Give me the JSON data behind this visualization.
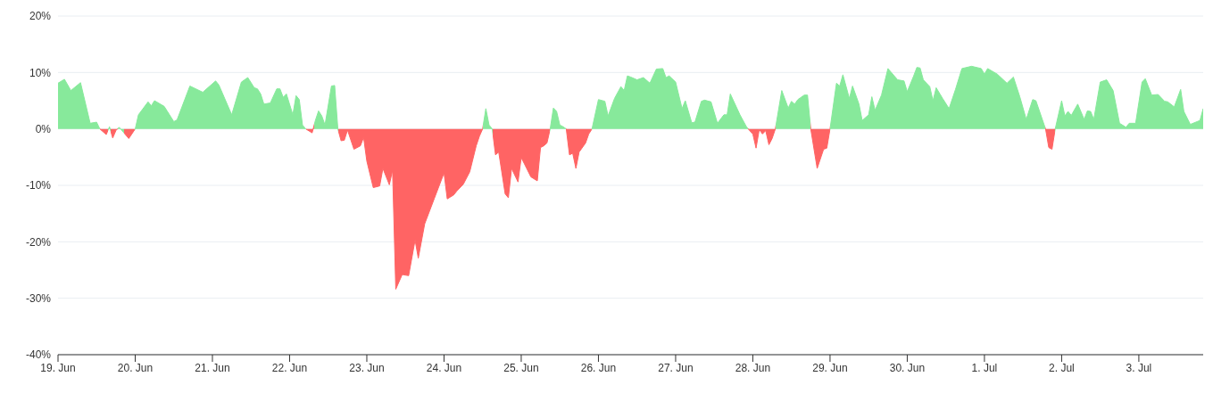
{
  "chart_data": {
    "type": "area",
    "x": [
      "--06-19T00:00",
      "--06-19T02:00",
      "--06-19T04:00",
      "--06-19T07:00",
      "--06-19T10:00",
      "--06-19T12:00",
      "--06-19T13:00",
      "--06-19T15:00",
      "--06-19T16:00",
      "--06-19T17:00",
      "--06-19T18:00",
      "--06-19T19:00",
      "--06-19T22:00",
      "--06-20T00:00",
      "--06-20T01:00",
      "--06-20T04:00",
      "--06-20T05:00",
      "--06-20T06:00",
      "--06-20T09:00",
      "--06-20T12:00",
      "--06-20T13:00",
      "--06-20T17:00",
      "--06-20T21:00",
      "--06-21T01:00",
      "--06-21T02:00",
      "--06-21T06:00",
      "--06-21T09:00",
      "--06-21T11:00",
      "--06-21T13:00",
      "--06-21T14:00",
      "--06-21T15:00",
      "--06-21T16:00",
      "--06-21T18:00",
      "--06-21T20:00",
      "--06-21T21:00",
      "--06-21T22:00",
      "--06-21T23:00",
      "--06-22T01:00",
      "--06-22T02:00",
      "--06-22T03:00",
      "--06-22T04:00",
      "--06-22T05:00",
      "--06-22T07:00",
      "--06-22T08:00",
      "--06-22T09:00",
      "--06-22T10:00",
      "--06-22T11:00",
      "--06-22T13:00",
      "--06-22T14:00",
      "--06-22T15:00",
      "--06-22T16:00",
      "--06-22T17:00",
      "--06-22T18:00",
      "--06-22T20:00",
      "--06-22T22:00",
      "--06-22T23:00",
      "--06-23T00:00",
      "--06-23T02:00",
      "--06-23T04:00",
      "--06-23T05:00",
      "--06-23T07:00",
      "--06-23T08:00",
      "--06-23T09:00",
      "--06-23T11:00",
      "--06-23T13:00",
      "--06-23T15:00",
      "--06-23T16:00",
      "--06-23T18:00",
      "--06-23T21:00",
      "--06-24T00:00",
      "--06-24T01:00",
      "--06-24T03:00",
      "--06-24T04:00",
      "--06-24T06:00",
      "--06-24T08:00",
      "--06-24T10:00",
      "--06-24T11:00",
      "--06-24T12:00",
      "--06-24T13:00",
      "--06-24T14:00",
      "--06-24T15:00",
      "--06-24T16:00",
      "--06-24T17:00",
      "--06-24T19:00",
      "--06-24T20:00",
      "--06-24T21:00",
      "--06-24T23:00",
      "--06-25T00:00",
      "--06-25T01:00",
      "--06-25T03:00",
      "--06-25T05:00",
      "--06-25T06:00",
      "--06-25T07:00",
      "--06-25T08:00",
      "--06-25T09:00",
      "--06-25T10:00",
      "--06-25T11:00",
      "--06-25T12:00",
      "--06-25T13:00",
      "--06-25T14:00",
      "--06-25T15:00",
      "--06-25T16:00",
      "--06-25T17:00",
      "--06-25T18:00",
      "--06-25T20:00",
      "--06-25T21:00",
      "--06-25T22:00",
      "--06-26T00:00",
      "--06-26T02:00",
      "--06-26T03:00",
      "--06-26T05:00",
      "--06-26T07:00",
      "--06-26T08:00",
      "--06-26T09:00",
      "--06-26T10:00",
      "--06-26T12:00",
      "--06-26T14:00",
      "--06-26T16:00",
      "--06-26T18:00",
      "--06-26T20:00",
      "--06-26T21:00",
      "--06-26T22:00",
      "--06-27T00:00",
      "--06-27T02:00",
      "--06-27T03:00",
      "--06-27T05:00",
      "--06-27T06:00",
      "--06-27T08:00",
      "--06-27T09:00",
      "--06-27T11:00",
      "--06-27T13:00",
      "--06-27T15:00",
      "--06-27T16:00",
      "--06-27T17:00",
      "--06-27T20:00",
      "--06-27T22:00",
      "--06-27T23:00",
      "--06-28T00:00",
      "--06-28T01:00",
      "--06-28T02:00",
      "--06-28T03:00",
      "--06-28T04:00",
      "--06-28T05:00",
      "--06-28T06:00",
      "--06-28T07:00",
      "--06-28T09:00",
      "--06-28T11:00",
      "--06-28T12:00",
      "--06-28T13:00",
      "--06-28T14:00",
      "--06-28T16:00",
      "--06-28T17:00",
      "--06-28T18:00",
      "--06-28T20:00",
      "--06-28T22:00",
      "--06-28T23:00",
      "--06-29T00:00",
      "--06-29T02:00",
      "--06-29T03:00",
      "--06-29T04:00",
      "--06-29T06:00",
      "--06-29T07:00",
      "--06-29T09:00",
      "--06-29T10:00",
      "--06-29T12:00",
      "--06-29T13:00",
      "--06-29T14:00",
      "--06-29T16:00",
      "--06-29T18:00",
      "--06-29T21:00",
      "--06-29T23:00",
      "--06-30T00:00",
      "--06-30T02:00",
      "--06-30T03:00",
      "--06-30T04:00",
      "--06-30T05:00",
      "--06-30T07:00",
      "--06-30T08:00",
      "--06-30T09:00",
      "--06-30T11:00",
      "--06-30T13:00",
      "--06-30T15:00",
      "--06-30T17:00",
      "--06-30T20:00",
      "--06-30T23:00",
      "--07-01T00:00",
      "--07-01T01:00",
      "--07-01T04:00",
      "--07-01T07:00",
      "--07-01T09:00",
      "--07-01T11:00",
      "--07-01T13:00",
      "--07-01T15:00",
      "--07-01T16:00",
      "--07-01T19:00",
      "--07-01T20:00",
      "--07-01T21:00",
      "--07-01T22:00",
      "--07-02T00:00",
      "--07-02T01:00",
      "--07-02T02:00",
      "--07-02T03:00",
      "--07-02T05:00",
      "--07-02T07:00",
      "--07-02T08:00",
      "--07-02T09:00",
      "--07-02T10:00",
      "--07-02T12:00",
      "--07-02T14:00",
      "--07-02T16:00",
      "--07-02T18:00",
      "--07-02T20:00",
      "--07-02T21:00",
      "--07-02T23:00",
      "--07-03T01:00",
      "--07-03T02:00",
      "--07-03T04:00",
      "--07-03T06:00",
      "--07-03T08:00",
      "--07-03T09:00",
      "--07-03T11:00",
      "--07-03T13:00",
      "--07-03T14:00",
      "--07-03T16:00",
      "--07-03T19:00",
      "--07-03T20:00"
    ],
    "series": [
      {
        "values": [
          8.1,
          8.8,
          6.8,
          8.2,
          1.0,
          1.2,
          0,
          -1.0,
          0.4,
          -1.6,
          -0.3,
          0.3,
          -1.7,
          0,
          2.5,
          4.8,
          4.1,
          5.0,
          4.0,
          1.3,
          1.6,
          7.6,
          6.5,
          8.5,
          7.8,
          2.5,
          8.3,
          9.1,
          7.3,
          7.1,
          6.2,
          4.4,
          4.6,
          7.1,
          7.1,
          5.6,
          6.2,
          2.5,
          5.9,
          5.2,
          0.7,
          0,
          -0.7,
          1.5,
          3.2,
          2.3,
          0.7,
          7.6,
          7.7,
          0,
          -2.1,
          -2.0,
          -0.2,
          -3.6,
          -3.0,
          -1.5,
          -5.7,
          -10.4,
          -10.1,
          -7.0,
          -9.9,
          -7.3,
          -28.4,
          -25.8,
          -26.0,
          -19.7,
          -22.9,
          -16.8,
          -12.3,
          -7.8,
          -12.4,
          -11.7,
          -11.0,
          -9.8,
          -7.6,
          -3.0,
          -1.3,
          0,
          3.6,
          0.7,
          0,
          -4.6,
          -4.1,
          -11.5,
          -12.2,
          -7.0,
          -9.4,
          -5.1,
          -6.2,
          -8.5,
          -9.2,
          -3.3,
          -3.0,
          -2.5,
          0,
          3.7,
          3.1,
          0.7,
          0.4,
          0,
          -4.6,
          -4.3,
          -7.0,
          -4.1,
          -2.5,
          -0.9,
          0,
          5.2,
          4.9,
          2.3,
          5.4,
          7.5,
          6.8,
          9.4,
          9.2,
          8.7,
          9.1,
          8.1,
          10.6,
          10.7,
          9.1,
          9.4,
          8.3,
          3.6,
          5.0,
          1.1,
          1.2,
          4.9,
          5.1,
          4.8,
          1.0,
          2.5,
          2.5,
          6.2,
          2.5,
          0.4,
          -0.3,
          -0.9,
          -3.4,
          -0.1,
          -0.9,
          -0.3,
          -2.8,
          -1.7,
          0,
          6.8,
          3.7,
          4.9,
          4.4,
          5.2,
          6.0,
          6.0,
          0,
          -7.0,
          -3.6,
          -3.4,
          0,
          8.1,
          7.6,
          9.6,
          5.4,
          7.6,
          4.4,
          1.5,
          2.5,
          5.7,
          3.3,
          6.0,
          10.7,
          8.7,
          8.5,
          6.6,
          9.4,
          10.9,
          10.8,
          8.7,
          7.5,
          5.0,
          7.3,
          5.4,
          3.6,
          7.0,
          10.7,
          11.1,
          10.7,
          9.7,
          10.7,
          9.7,
          8.1,
          9.2,
          5.7,
          1.7,
          5.2,
          5.0,
          0,
          -3.3,
          -3.6,
          0,
          5.0,
          2.3,
          3.1,
          2.4,
          4.4,
          1.7,
          3.2,
          3.1,
          1.7,
          8.3,
          8.7,
          6.8,
          1.0,
          0.3,
          1.0,
          1.0,
          8.3,
          8.9,
          6.0,
          6.1,
          4.9,
          4.8,
          3.9,
          7.0,
          3.1,
          0.8,
          1.5,
          3.6
        ],
        "colors": [
          "#87e99b",
          "#87e99b",
          "#87e99b",
          "#87e99b",
          "#87e99b",
          "#87e99b",
          "#ff6464",
          "#ff6464",
          "#87e99b",
          "#ff6464",
          "#ff6464",
          "#87e99b",
          "#ff6464",
          "#87e99b",
          "#87e99b",
          "#87e99b",
          "#87e99b",
          "#87e99b",
          "#87e99b",
          "#87e99b",
          "#87e99b",
          "#87e99b",
          "#87e99b",
          "#87e99b",
          "#87e99b",
          "#87e99b",
          "#87e99b",
          "#87e99b",
          "#87e99b",
          "#87e99b",
          "#87e99b",
          "#87e99b",
          "#87e99b",
          "#87e99b",
          "#87e99b",
          "#87e99b",
          "#87e99b",
          "#87e99b",
          "#87e99b",
          "#87e99b",
          "#87e99b",
          "#ff6464",
          "#ff6464",
          "#87e99b",
          "#87e99b",
          "#87e99b",
          "#87e99b",
          "#87e99b",
          "#87e99b",
          "#ff6464",
          "#ff6464",
          "#ff6464",
          "#ff6464",
          "#ff6464",
          "#ff6464",
          "#ff6464",
          "#ff6464",
          "#ff6464",
          "#ff6464",
          "#ff6464",
          "#ff6464",
          "#ff6464",
          "#ff6464",
          "#ff6464",
          "#ff6464",
          "#ff6464",
          "#ff6464",
          "#ff6464",
          "#ff6464",
          "#ff6464",
          "#ff6464",
          "#ff6464",
          "#ff6464",
          "#ff6464",
          "#ff6464",
          "#ff6464",
          "#ff6464",
          "#87e99b",
          "#87e99b",
          "#87e99b",
          "#ff6464",
          "#ff6464",
          "#ff6464",
          "#ff6464",
          "#ff6464",
          "#ff6464",
          "#ff6464",
          "#ff6464",
          "#ff6464",
          "#ff6464",
          "#ff6464",
          "#ff6464",
          "#ff6464",
          "#ff6464",
          "#87e99b",
          "#87e99b",
          "#87e99b",
          "#87e99b",
          "#87e99b",
          "#ff6464",
          "#ff6464",
          "#ff6464",
          "#ff6464",
          "#ff6464",
          "#ff6464",
          "#ff6464",
          "#87e99b",
          "#87e99b",
          "#87e99b",
          "#87e99b",
          "#87e99b",
          "#87e99b",
          "#87e99b",
          "#87e99b",
          "#87e99b",
          "#87e99b",
          "#87e99b",
          "#87e99b",
          "#87e99b",
          "#87e99b",
          "#87e99b",
          "#87e99b",
          "#87e99b",
          "#87e99b",
          "#87e99b",
          "#87e99b",
          "#87e99b",
          "#87e99b",
          "#87e99b",
          "#87e99b",
          "#87e99b",
          "#87e99b",
          "#87e99b",
          "#87e99b",
          "#87e99b",
          "#87e99b",
          "#ff6464",
          "#ff6464",
          "#ff6464",
          "#ff6464",
          "#ff6464",
          "#ff6464",
          "#ff6464",
          "#ff6464",
          "#87e99b",
          "#87e99b",
          "#87e99b",
          "#87e99b",
          "#87e99b",
          "#87e99b",
          "#87e99b",
          "#87e99b",
          "#ff6464",
          "#ff6464",
          "#ff6464",
          "#ff6464",
          "#87e99b",
          "#87e99b",
          "#87e99b",
          "#87e99b",
          "#87e99b",
          "#87e99b",
          "#87e99b",
          "#87e99b",
          "#87e99b",
          "#87e99b",
          "#87e99b",
          "#87e99b",
          "#87e99b",
          "#87e99b",
          "#87e99b",
          "#87e99b",
          "#87e99b",
          "#87e99b",
          "#87e99b",
          "#87e99b",
          "#87e99b",
          "#87e99b",
          "#87e99b",
          "#87e99b",
          "#87e99b",
          "#87e99b",
          "#87e99b",
          "#87e99b",
          "#87e99b",
          "#87e99b",
          "#87e99b",
          "#87e99b",
          "#87e99b",
          "#87e99b",
          "#87e99b",
          "#87e99b",
          "#87e99b",
          "#87e99b",
          "#ff6464",
          "#ff6464",
          "#ff6464",
          "#87e99b",
          "#87e99b",
          "#87e99b",
          "#87e99b",
          "#87e99b",
          "#87e99b",
          "#87e99b",
          "#87e99b",
          "#87e99b",
          "#87e99b",
          "#87e99b",
          "#87e99b",
          "#87e99b",
          "#87e99b",
          "#87e99b",
          "#87e99b",
          "#87e99b",
          "#87e99b",
          "#87e99b",
          "#87e99b",
          "#87e99b",
          "#87e99b",
          "#87e99b",
          "#87e99b",
          "#87e99b",
          "#87e99b",
          "#87e99b",
          "#87e99b",
          "#87e99b"
        ]
      }
    ],
    "xlim": [
      "--06-19T00:00",
      "--07-03T20:00"
    ],
    "xticks": [
      {
        "value": "--06-19",
        "label": "19. Jun"
      },
      {
        "value": "--06-20",
        "label": "20. Jun"
      },
      {
        "value": "--06-21",
        "label": "21. Jun"
      },
      {
        "value": "--06-22",
        "label": "22. Jun"
      },
      {
        "value": "--06-23",
        "label": "23. Jun"
      },
      {
        "value": "--06-24",
        "label": "24. Jun"
      },
      {
        "value": "--06-25",
        "label": "25. Jun"
      },
      {
        "value": "--06-26",
        "label": "26. Jun"
      },
      {
        "value": "--06-27",
        "label": "27. Jun"
      },
      {
        "value": "--06-28",
        "label": "28. Jun"
      },
      {
        "value": "--06-29",
        "label": "29. Jun"
      },
      {
        "value": "--06-30",
        "label": "30. Jun"
      },
      {
        "value": "--07-01",
        "label": "1. Jul"
      },
      {
        "value": "--07-02",
        "label": "2. Jul"
      },
      {
        "value": "--07-03",
        "label": "3. Jul"
      }
    ],
    "ylim": [
      -40,
      20
    ],
    "yticks": [
      {
        "value": -40,
        "label": "-40%"
      },
      {
        "value": -30,
        "label": "-30%"
      },
      {
        "value": -20,
        "label": "-20%"
      },
      {
        "value": -10,
        "label": "-10%"
      },
      {
        "value": 0,
        "label": "0%"
      },
      {
        "value": 10,
        "label": "10%"
      },
      {
        "value": 20,
        "label": "20%"
      }
    ],
    "grid": "y",
    "legend": false
  }
}
